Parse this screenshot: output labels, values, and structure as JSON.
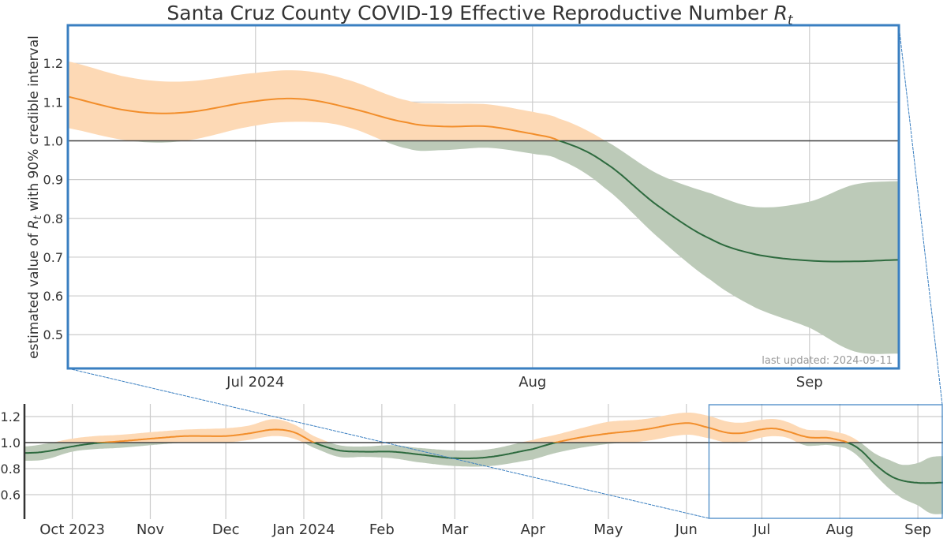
{
  "chart_data": {
    "type": "line",
    "title": "Santa Cruz County COVID-19 Effective Reproductive Number",
    "title_symbol": "R",
    "title_subscript": "t",
    "ylabel_prefix": "estimated value of ",
    "ylabel_symbol": "R",
    "ylabel_subscript": "t",
    "ylabel_suffix": " with 90% credible interval",
    "annotation": "last updated: 2024-09-11",
    "reference_line": 1.0,
    "colors": {
      "above_line": "#f28e2b",
      "above_band": "#fdd9b5",
      "below_line": "#2d6a3e",
      "below_band": "#bccab8",
      "zoom_box": "#3a7fc1",
      "reference": "#444444"
    },
    "main": {
      "xlim": [
        "2024-06-10",
        "2024-09-11"
      ],
      "ylim": [
        0.413,
        1.298
      ],
      "yticks": [
        0.5,
        0.6,
        0.7,
        0.8,
        0.9,
        1.0,
        1.1,
        1.2
      ],
      "ytick_labels": [
        "0.5",
        "0.6",
        "0.7",
        "0.8",
        "0.9",
        "1.0",
        "1.1",
        "1.2"
      ],
      "xticks": [
        "2024-07-01",
        "2024-08-01",
        "2024-09-01"
      ],
      "xtick_labels": [
        "Jul 2024",
        "Aug",
        "Sep"
      ],
      "grid": true
    },
    "overview": {
      "xlim": [
        "2023-09-12",
        "2024-09-11"
      ],
      "ylim": [
        0.412,
        1.297
      ],
      "yticks": [
        0.6,
        0.8,
        1.0,
        1.2
      ],
      "ytick_labels": [
        "0.6",
        "0.8",
        "1.0",
        "1.2"
      ],
      "xticks": [
        "2023-10-01",
        "2023-11-01",
        "2023-12-01",
        "2024-01-01",
        "2024-02-01",
        "2024-03-01",
        "2024-04-01",
        "2024-05-01",
        "2024-06-01",
        "2024-07-01",
        "2024-08-01",
        "2024-09-01"
      ],
      "xtick_labels": [
        "Oct 2023",
        "Nov",
        "Dec",
        "Jan 2024",
        "Feb",
        "Mar",
        "Apr",
        "May",
        "Jun",
        "Jul",
        "Aug",
        "Sep"
      ],
      "grid": true,
      "zoom_window": [
        "2024-06-10",
        "2024-09-11"
      ]
    },
    "series": [
      {
        "date": "2023-09-12",
        "mean": 0.92,
        "lower": 0.86,
        "upper": 0.97
      },
      {
        "date": "2023-09-20",
        "mean": 0.93,
        "lower": 0.87,
        "upper": 0.99
      },
      {
        "date": "2023-10-01",
        "mean": 0.97,
        "lower": 0.93,
        "upper": 1.03
      },
      {
        "date": "2023-10-10",
        "mean": 0.995,
        "lower": 0.95,
        "upper": 1.05
      },
      {
        "date": "2023-10-20",
        "mean": 1.01,
        "lower": 0.96,
        "upper": 1.06
      },
      {
        "date": "2023-11-01",
        "mean": 1.03,
        "lower": 0.98,
        "upper": 1.08
      },
      {
        "date": "2023-11-15",
        "mean": 1.05,
        "lower": 1.0,
        "upper": 1.1
      },
      {
        "date": "2023-12-01",
        "mean": 1.05,
        "lower": 1.0,
        "upper": 1.11
      },
      {
        "date": "2023-12-10",
        "mean": 1.07,
        "lower": 1.02,
        "upper": 1.13
      },
      {
        "date": "2023-12-20",
        "mean": 1.1,
        "lower": 1.05,
        "upper": 1.18
      },
      {
        "date": "2023-12-28",
        "mean": 1.08,
        "lower": 1.03,
        "upper": 1.14
      },
      {
        "date": "2024-01-05",
        "mean": 1.0,
        "lower": 0.96,
        "upper": 1.05
      },
      {
        "date": "2024-01-15",
        "mean": 0.94,
        "lower": 0.89,
        "upper": 0.98
      },
      {
        "date": "2024-01-25",
        "mean": 0.93,
        "lower": 0.89,
        "upper": 0.97
      },
      {
        "date": "2024-02-05",
        "mean": 0.93,
        "lower": 0.88,
        "upper": 0.98
      },
      {
        "date": "2024-02-15",
        "mean": 0.91,
        "lower": 0.85,
        "upper": 0.96
      },
      {
        "date": "2024-03-01",
        "mean": 0.88,
        "lower": 0.82,
        "upper": 0.94
      },
      {
        "date": "2024-03-15",
        "mean": 0.89,
        "lower": 0.82,
        "upper": 0.95
      },
      {
        "date": "2024-04-01",
        "mean": 0.95,
        "lower": 0.87,
        "upper": 1.02
      },
      {
        "date": "2024-04-10",
        "mean": 1.0,
        "lower": 0.92,
        "upper": 1.06
      },
      {
        "date": "2024-04-20",
        "mean": 1.04,
        "lower": 0.96,
        "upper": 1.11
      },
      {
        "date": "2024-05-01",
        "mean": 1.07,
        "lower": 0.99,
        "upper": 1.16
      },
      {
        "date": "2024-05-15",
        "mean": 1.1,
        "lower": 1.01,
        "upper": 1.18
      },
      {
        "date": "2024-06-01",
        "mean": 1.15,
        "lower": 1.06,
        "upper": 1.23
      },
      {
        "date": "2024-06-10",
        "mean": 1.114,
        "lower": 1.033,
        "upper": 1.205
      },
      {
        "date": "2024-06-17",
        "mean": 1.077,
        "lower": 1.0,
        "upper": 1.163
      },
      {
        "date": "2024-06-23",
        "mean": 1.073,
        "lower": 1.0,
        "upper": 1.153
      },
      {
        "date": "2024-07-01",
        "mean": 1.102,
        "lower": 1.039,
        "upper": 1.175
      },
      {
        "date": "2024-07-06",
        "mean": 1.108,
        "lower": 1.049,
        "upper": 1.181
      },
      {
        "date": "2024-07-11",
        "mean": 1.087,
        "lower": 1.037,
        "upper": 1.159
      },
      {
        "date": "2024-07-18",
        "mean": 1.047,
        "lower": 0.98,
        "upper": 1.104
      },
      {
        "date": "2024-07-22",
        "mean": 1.037,
        "lower": 0.976,
        "upper": 1.096
      },
      {
        "date": "2024-07-27",
        "mean": 1.037,
        "lower": 0.982,
        "upper": 1.094
      },
      {
        "date": "2024-08-01",
        "mean": 1.018,
        "lower": 0.967,
        "upper": 1.075
      },
      {
        "date": "2024-08-04",
        "mean": 1.0,
        "lower": 0.951,
        "upper": 1.057
      },
      {
        "date": "2024-08-09",
        "mean": 0.945,
        "lower": 0.88,
        "upper": 1.002
      },
      {
        "date": "2024-08-15",
        "mean": 0.833,
        "lower": 0.752,
        "upper": 0.915
      },
      {
        "date": "2024-08-21",
        "mean": 0.746,
        "lower": 0.64,
        "upper": 0.864
      },
      {
        "date": "2024-08-26",
        "mean": 0.707,
        "lower": 0.569,
        "upper": 0.829
      },
      {
        "date": "2024-09-01",
        "mean": 0.691,
        "lower": 0.518,
        "upper": 0.843
      },
      {
        "date": "2024-09-06",
        "mean": 0.689,
        "lower": 0.457,
        "upper": 0.887
      },
      {
        "date": "2024-09-11",
        "mean": 0.693,
        "lower": 0.451,
        "upper": 0.896
      }
    ]
  }
}
